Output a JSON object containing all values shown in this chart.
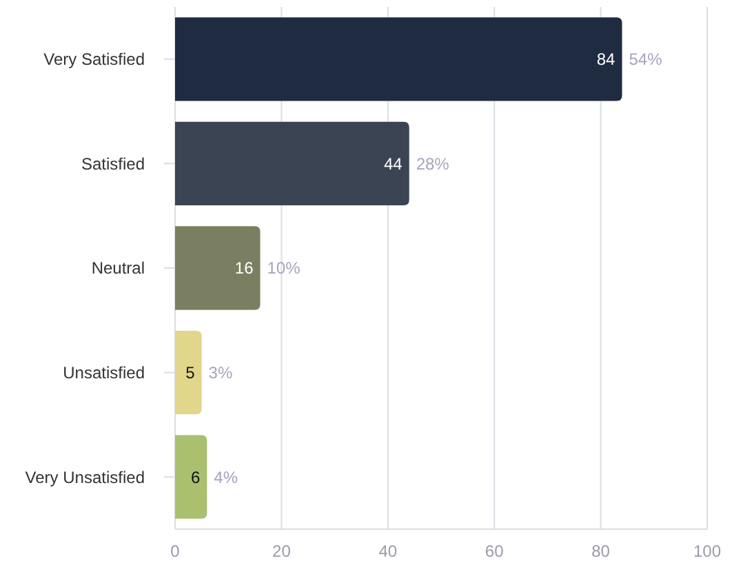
{
  "chart_data": {
    "type": "bar",
    "orientation": "horizontal",
    "categories": [
      "Very Satisfied",
      "Satisfied",
      "Neutral",
      "Unsatisfied",
      "Very Unsatisfied"
    ],
    "values": [
      84,
      44,
      16,
      5,
      6
    ],
    "colors": [
      "#1f2b40",
      "#3a4453",
      "#7b7f62",
      "#e2d68a",
      "#a9c06f"
    ],
    "annotations": [
      {
        "text": "54%",
        "x": 84,
        "y": "Very Satisfied"
      },
      {
        "text": "28%",
        "x": 44,
        "y": "Satisfied"
      },
      {
        "text": "10%",
        "x": 16,
        "y": "Neutral"
      },
      {
        "text": "3%",
        "x": 5,
        "y": "Unsatisfied"
      },
      {
        "text": "4%",
        "x": 6,
        "y": "Very Unsatisfied"
      }
    ],
    "data_labels": true,
    "xlim": [
      0,
      100
    ],
    "xticks": [
      0,
      20,
      40,
      60,
      80,
      100
    ],
    "grid": "x"
  }
}
